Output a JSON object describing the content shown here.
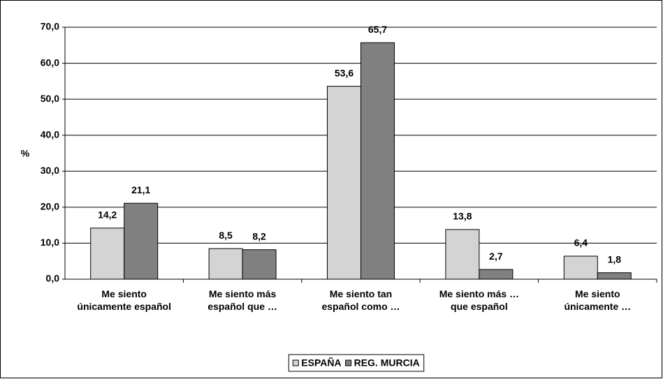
{
  "chart_data": {
    "type": "bar",
    "y_label": "%",
    "categories": [
      "Me siento únicamente español",
      "Me siento más español que …",
      "Me siento tan español como …",
      "Me siento más … que español",
      "Me siento únicamente …"
    ],
    "series": [
      {
        "name": "ESPAÑA",
        "color": "#d4d4d4",
        "values": [
          14.2,
          8.5,
          53.6,
          13.8,
          6.4
        ],
        "value_labels": [
          "14,2",
          "8,5",
          "53,6",
          "13,8",
          "6,4"
        ]
      },
      {
        "name": "REG. MURCIA",
        "color": "#808080",
        "values": [
          21.1,
          8.2,
          65.7,
          2.7,
          1.8
        ],
        "value_labels": [
          "21,1",
          "8,2",
          "65,7",
          "2,7",
          "1,8"
        ]
      }
    ],
    "ylim": [
      0,
      70
    ],
    "yticks": [
      {
        "value": 0,
        "label": "0,0"
      },
      {
        "value": 10,
        "label": "10,0"
      },
      {
        "value": 20,
        "label": "20,0"
      },
      {
        "value": 30,
        "label": "30,0"
      },
      {
        "value": 40,
        "label": "40,0"
      },
      {
        "value": 50,
        "label": "50,0"
      },
      {
        "value": 60,
        "label": "60,0"
      },
      {
        "value": 70,
        "label": "70,0"
      }
    ],
    "grid": true,
    "legend": "bottom"
  }
}
